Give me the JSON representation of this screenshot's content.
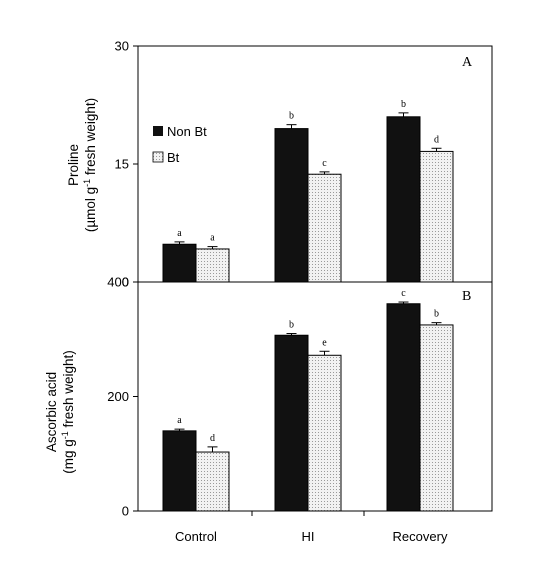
{
  "chart_data": [
    {
      "type": "bar",
      "panel_label": "A",
      "ylabel_line1": "Proline",
      "ylabel_line2": "(µmol g-1 fresh weight)",
      "ylim": [
        0,
        30
      ],
      "yticks": [
        "0",
        "15",
        "30"
      ],
      "categories": [
        "Control",
        "HI",
        "Recovery"
      ],
      "series": [
        {
          "name": "Non Bt",
          "color": "#111111",
          "values": [
            4.8,
            19.5,
            21.0
          ],
          "errors": [
            0.3,
            0.5,
            0.5
          ],
          "labels": [
            "a",
            "b",
            "b"
          ]
        },
        {
          "name": "Bt",
          "color": "#e8e8e8",
          "values": [
            4.2,
            13.7,
            16.6
          ],
          "errors": [
            0.3,
            0.3,
            0.4
          ],
          "labels": [
            "a",
            "c",
            "d"
          ]
        }
      ],
      "legend": "upper-left"
    },
    {
      "type": "bar",
      "panel_label": "B",
      "ylabel_line1": "Ascorbic acid",
      "ylabel_line2": "(mg g-1 fresh weight)",
      "ylim": [
        0,
        400
      ],
      "yticks": [
        "0",
        "200",
        "400"
      ],
      "categories": [
        "Control",
        "HI",
        "Recovery"
      ],
      "series": [
        {
          "name": "Non Bt",
          "color": "#111111",
          "values": [
            140,
            307,
            362
          ],
          "errors": [
            3,
            3,
            3
          ],
          "labels": [
            "a",
            "b",
            "c"
          ]
        },
        {
          "name": "Bt",
          "color": "#e8e8e8",
          "values": [
            103,
            272,
            325
          ],
          "errors": [
            9,
            7,
            4
          ],
          "labels": [
            "d",
            "e",
            "b"
          ]
        }
      ]
    }
  ]
}
